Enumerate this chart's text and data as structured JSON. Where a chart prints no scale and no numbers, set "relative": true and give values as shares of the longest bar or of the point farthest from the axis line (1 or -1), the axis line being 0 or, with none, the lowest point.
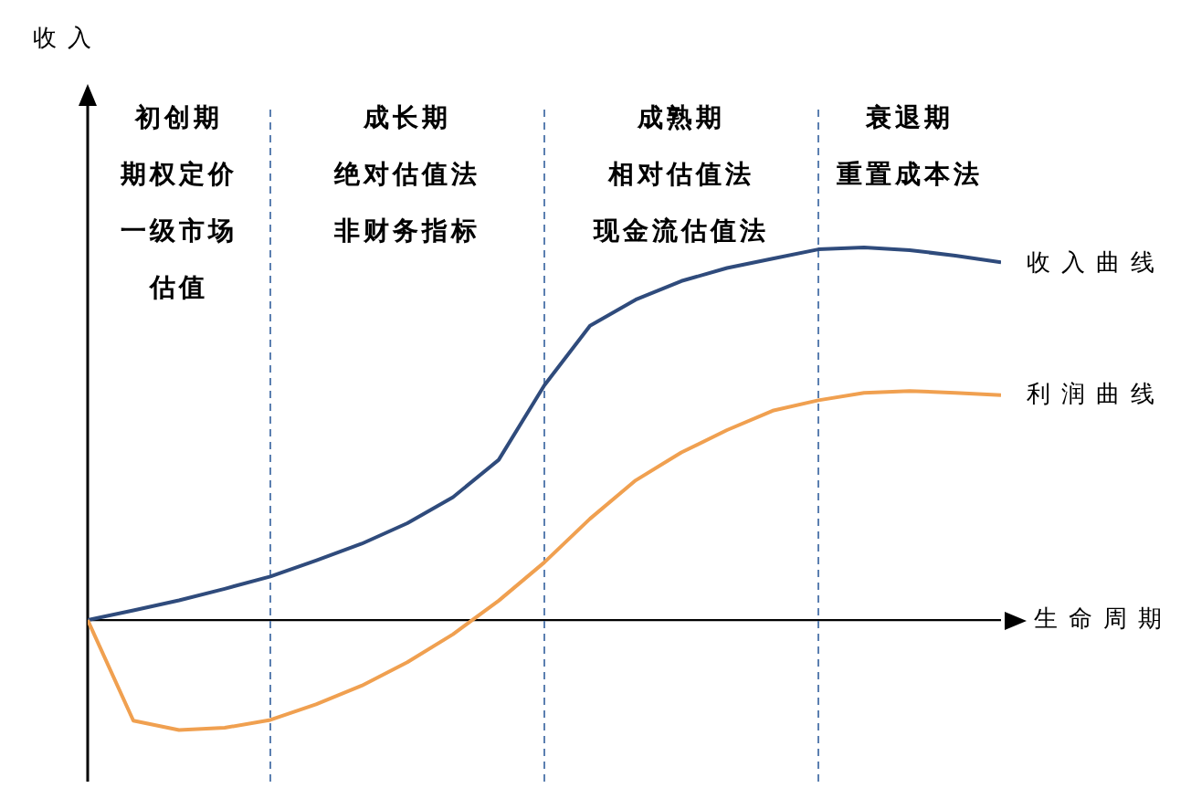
{
  "chart_data": {
    "type": "line",
    "relative": true,
    "xlabel": "生命周期",
    "marker": "none",
    "line_style": "solid",
    "grid": "x",
    "categories": [
      null,
      null,
      null,
      null,
      null,
      null,
      null,
      null,
      null,
      null,
      null,
      null,
      null,
      null,
      null,
      null,
      null,
      null,
      null,
      null,
      null
    ],
    "series": [
      {
        "name": "收入曲线",
        "color": "#2f4b7c",
        "values": [
          0,
          0.026,
          0.053,
          0.084,
          0.117,
          0.16,
          0.205,
          0.26,
          0.33,
          0.43,
          0.63,
          0.79,
          0.86,
          0.91,
          0.945,
          0.97,
          0.995,
          1,
          0.993,
          0.978,
          0.96
        ]
      },
      {
        "name": "利润曲线",
        "color": "#f0a050",
        "values": [
          0,
          -0.27,
          -0.295,
          -0.289,
          -0.268,
          -0.226,
          -0.176,
          -0.113,
          -0.038,
          0.052,
          0.155,
          0.272,
          0.375,
          0.45,
          0.51,
          0.562,
          0.59,
          0.61,
          0.615,
          0.61,
          0.604
        ]
      }
    ],
    "annotations": [
      "收入",
      "初创期",
      "期权定价",
      "一级市场",
      "估值",
      "成长期",
      "绝对估值法",
      "非财务指标",
      "成熟期",
      "相对估值法",
      "现金流估值法",
      "衰退期",
      "重置成本法"
    ]
  }
}
